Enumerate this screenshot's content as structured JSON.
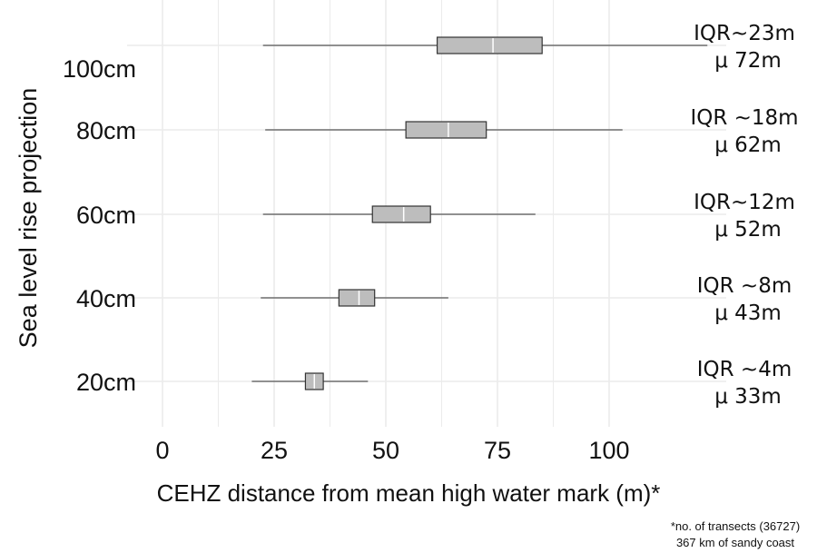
{
  "chart_data": {
    "type": "boxplot",
    "orientation": "horizontal",
    "xlabel": "CEHZ distance from mean high water mark (m)*",
    "ylabel": "Sea level rise projection",
    "xticks": [
      0,
      25,
      50,
      75,
      100
    ],
    "xlim": [
      -8,
      123
    ],
    "grid": true,
    "categories": [
      "20cm",
      "40cm",
      "60cm",
      "80cm",
      "100cm"
    ],
    "boxes": [
      {
        "label": "20cm",
        "whisker_low": 20,
        "q1": 32,
        "median": 34,
        "q3": 36,
        "whisker_high": 46,
        "annotation": [
          "IQR ~4m",
          "μ 33m"
        ]
      },
      {
        "label": "40cm",
        "whisker_low": 22,
        "q1": 39.5,
        "median": 44,
        "q3": 47.5,
        "whisker_high": 64,
        "annotation": [
          "IQR ~8m",
          "μ 43m"
        ]
      },
      {
        "label": "60cm",
        "whisker_low": 22.5,
        "q1": 47,
        "median": 54,
        "q3": 60,
        "whisker_high": 83.5,
        "annotation": [
          "IQR~12m",
          "μ 52m"
        ]
      },
      {
        "label": "80cm",
        "whisker_low": 23,
        "q1": 54.5,
        "median": 64,
        "q3": 72.5,
        "whisker_high": 103,
        "annotation": [
          "IQR ~18m",
          "μ 62m"
        ]
      },
      {
        "label": "100cm",
        "whisker_low": 22.5,
        "q1": 61.5,
        "median": 74,
        "q3": 85,
        "whisker_high": 122,
        "annotation": [
          "IQR~23m",
          "μ 72m"
        ]
      }
    ],
    "footnote": [
      "*no. of transects (36727)",
      "367 km of sandy coast"
    ],
    "colors": {
      "box_fill": "#bdbdbd",
      "box_stroke": "#333333",
      "whisker": "#555555",
      "grid": "#ebebeb",
      "median": "#ffffff"
    }
  }
}
